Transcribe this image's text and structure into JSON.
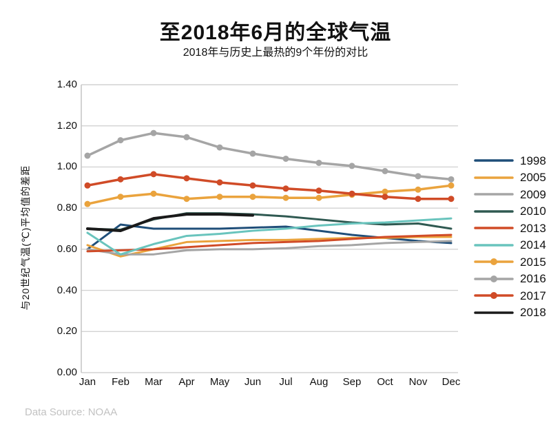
{
  "header": {
    "title": "至2018年6月的全球气温",
    "subtitle": "2018年与历史上最热的9个年份的对比"
  },
  "footer": {
    "source": "Data Source: NOAA"
  },
  "chart_data": {
    "type": "line",
    "title": "至2018年6月的全球气温",
    "subtitle": "2018年与历史上最热的9个年份的对比",
    "xlabel": "",
    "ylabel": "与20世纪气温(℃)平均值的差距",
    "ylim": [
      0,
      1.4
    ],
    "ytick_step": 0.2,
    "ytick_labels": [
      "0.00",
      "0.20",
      "0.40",
      "0.60",
      "0.80",
      "1.00",
      "1.20",
      "1.40"
    ],
    "categories": [
      "Jan",
      "Feb",
      "Mar",
      "Apr",
      "May",
      "Jun",
      "Jul",
      "Aug",
      "Sep",
      "Oct",
      "Nov",
      "Dec"
    ],
    "grid": true,
    "legend_position": "right",
    "colors": {
      "gridline": "#d2d2d2",
      "axis": "#c6c6c6",
      "text": "#111111",
      "source_text": "#c2c2c2"
    },
    "series": [
      {
        "name": "1998",
        "color": "#1f4e79",
        "markers": false,
        "values": [
          0.6,
          0.72,
          0.7,
          0.7,
          0.7,
          0.705,
          0.71,
          0.69,
          0.67,
          0.655,
          0.64,
          0.63
        ]
      },
      {
        "name": "2005",
        "color": "#eaa33d",
        "markers": false,
        "values": [
          0.62,
          0.565,
          0.6,
          0.635,
          0.64,
          0.645,
          0.645,
          0.65,
          0.655,
          0.655,
          0.66,
          0.66
        ]
      },
      {
        "name": "2009",
        "color": "#a5a5a5",
        "markers": false,
        "values": [
          0.6,
          0.575,
          0.575,
          0.595,
          0.6,
          0.6,
          0.605,
          0.615,
          0.62,
          0.63,
          0.635,
          0.64
        ]
      },
      {
        "name": "2010",
        "color": "#2f5951",
        "markers": false,
        "values": [
          0.7,
          0.695,
          0.745,
          0.775,
          0.775,
          0.77,
          0.76,
          0.745,
          0.73,
          0.72,
          0.725,
          0.7
        ]
      },
      {
        "name": "2013",
        "color": "#d04b27",
        "markers": false,
        "values": [
          0.59,
          0.595,
          0.6,
          0.61,
          0.62,
          0.63,
          0.635,
          0.64,
          0.65,
          0.66,
          0.665,
          0.67
        ]
      },
      {
        "name": "2014",
        "color": "#69c4bd",
        "markers": false,
        "values": [
          0.68,
          0.575,
          0.625,
          0.665,
          0.675,
          0.69,
          0.7,
          0.715,
          0.725,
          0.73,
          0.74,
          0.75
        ]
      },
      {
        "name": "2015",
        "color": "#eaa33d",
        "markers": true,
        "values": [
          0.82,
          0.855,
          0.87,
          0.845,
          0.855,
          0.855,
          0.85,
          0.85,
          0.865,
          0.88,
          0.89,
          0.91
        ]
      },
      {
        "name": "2016",
        "color": "#a5a5a5",
        "markers": true,
        "values": [
          1.055,
          1.13,
          1.165,
          1.145,
          1.095,
          1.065,
          1.04,
          1.02,
          1.005,
          0.98,
          0.955,
          0.94
        ]
      },
      {
        "name": "2017",
        "color": "#d04b27",
        "markers": true,
        "values": [
          0.91,
          0.94,
          0.965,
          0.945,
          0.925,
          0.91,
          0.895,
          0.885,
          0.87,
          0.855,
          0.845,
          0.845
        ]
      },
      {
        "name": "2018",
        "color": "#1a1a1a",
        "markers": false,
        "values": [
          0.7,
          0.69,
          0.75,
          0.77,
          0.77,
          0.765,
          null,
          null,
          null,
          null,
          null,
          null
        ]
      }
    ]
  }
}
